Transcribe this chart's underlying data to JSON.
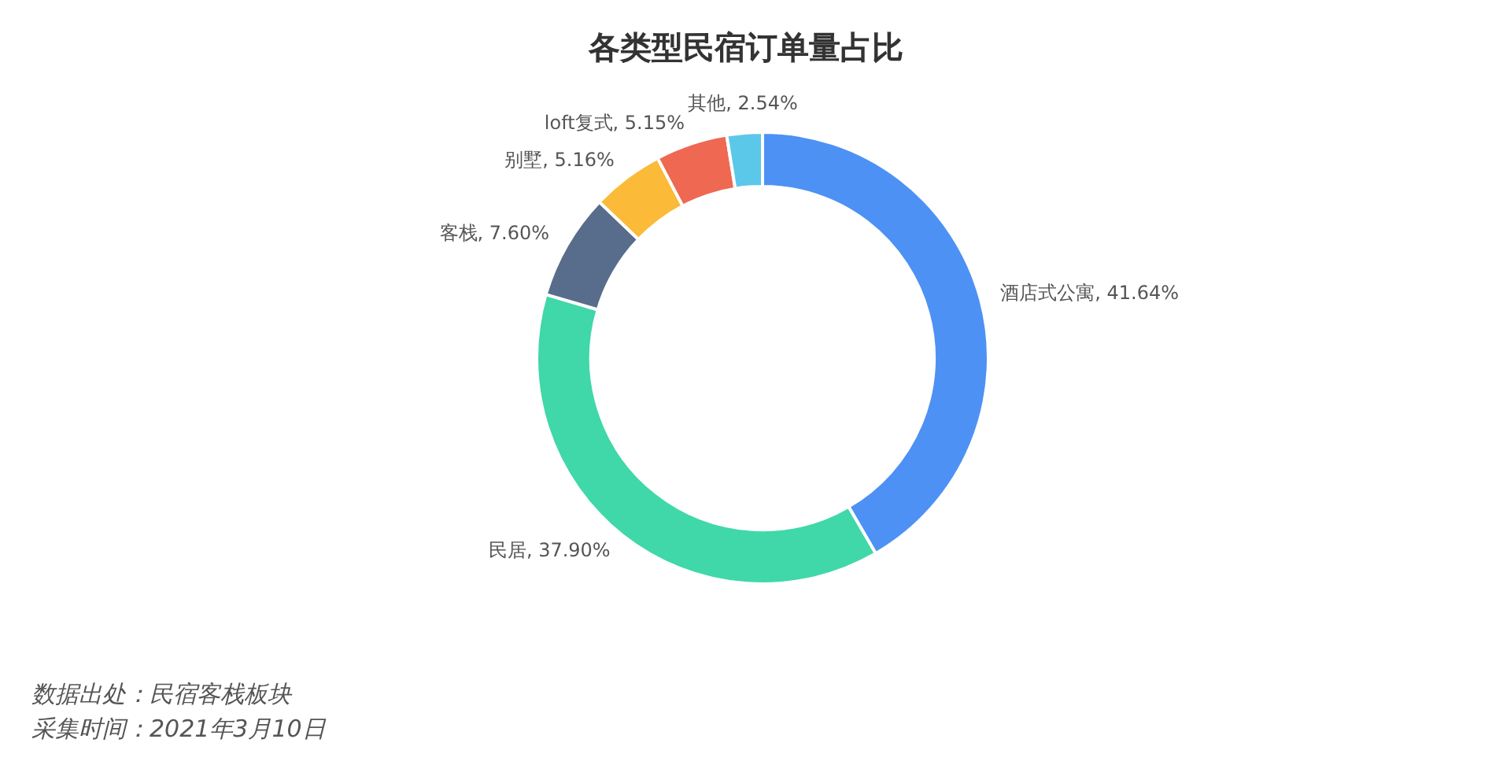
{
  "chart_data": {
    "type": "donut",
    "title": "各类型民宿订单量占比",
    "categories": [
      "酒店式公寓",
      "民居",
      "客栈",
      "别墅",
      "loft复式",
      "其他"
    ],
    "values": [
      41.64,
      37.9,
      7.6,
      5.16,
      5.15,
      2.54
    ],
    "colors": [
      "#4e91f5",
      "#40d8a8",
      "#586d8c",
      "#fbba38",
      "#ef6852",
      "#5bc8ea"
    ],
    "value_labels": [
      "41.64%",
      "37.90%",
      "7.60%",
      "5.16%",
      "5.15%",
      "2.54%"
    ],
    "annotations": [
      "数据出处：民宿客栈板块",
      "采集时间：2021年3月10日"
    ]
  }
}
